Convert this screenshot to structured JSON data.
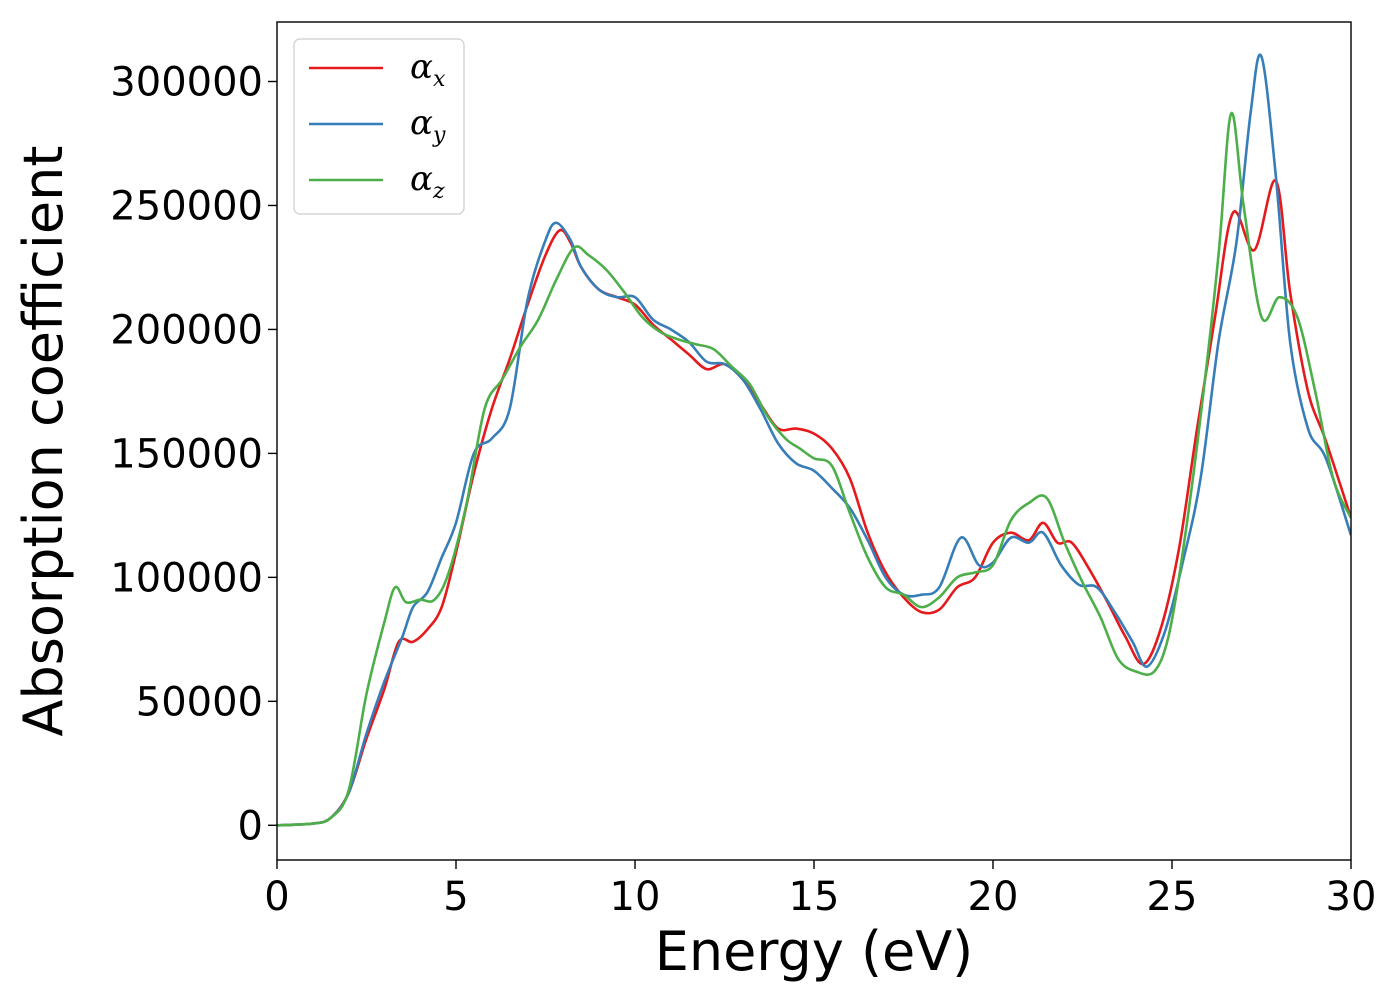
{
  "chart_data": {
    "type": "line",
    "title": "",
    "xlabel": "Energy (eV)",
    "ylabel": "Absorption coefficient",
    "xlim": [
      0,
      30
    ],
    "ylim": [
      -14000,
      324000
    ],
    "xticks": [
      0,
      5,
      10,
      15,
      20,
      25,
      30
    ],
    "xtick_labels": [
      "0",
      "5",
      "10",
      "15",
      "20",
      "25",
      "30"
    ],
    "yticks": [
      0,
      50000,
      100000,
      150000,
      200000,
      250000,
      300000
    ],
    "ytick_labels": [
      "0",
      "50000",
      "100000",
      "150000",
      "200000",
      "250000",
      "300000"
    ],
    "grid": false,
    "legend_position": "top-left",
    "series": [
      {
        "name": "αx",
        "symbol": "α",
        "subscript": "x",
        "color": "#e41a1c",
        "points": [
          [
            0,
            0
          ],
          [
            1,
            700
          ],
          [
            1.5,
            3000
          ],
          [
            2,
            13000
          ],
          [
            2.5,
            35000
          ],
          [
            3,
            55000
          ],
          [
            3.4,
            74000
          ],
          [
            3.8,
            74000
          ],
          [
            4.2,
            79000
          ],
          [
            4.6,
            88000
          ],
          [
            5,
            110000
          ],
          [
            5.5,
            142000
          ],
          [
            6,
            168000
          ],
          [
            6.5,
            188000
          ],
          [
            7,
            210000
          ],
          [
            7.5,
            230000
          ],
          [
            7.9,
            240000
          ],
          [
            8.2,
            235000
          ],
          [
            8.5,
            225000
          ],
          [
            9,
            216000
          ],
          [
            9.5,
            213000
          ],
          [
            10,
            210000
          ],
          [
            10.5,
            202000
          ],
          [
            11,
            196000
          ],
          [
            11.5,
            190000
          ],
          [
            12,
            184000
          ],
          [
            12.5,
            186000
          ],
          [
            13,
            180000
          ],
          [
            13.5,
            170000
          ],
          [
            14,
            160000
          ],
          [
            14.5,
            160000
          ],
          [
            15,
            158000
          ],
          [
            15.5,
            152000
          ],
          [
            16,
            140000
          ],
          [
            16.5,
            118000
          ],
          [
            17,
            102000
          ],
          [
            17.5,
            92000
          ],
          [
            18,
            86000
          ],
          [
            18.5,
            87000
          ],
          [
            19,
            96000
          ],
          [
            19.5,
            100000
          ],
          [
            20,
            114000
          ],
          [
            20.5,
            118000
          ],
          [
            21,
            115000
          ],
          [
            21.4,
            122000
          ],
          [
            21.8,
            114000
          ],
          [
            22.2,
            114000
          ],
          [
            22.7,
            103000
          ],
          [
            23.2,
            90000
          ],
          [
            23.7,
            76000
          ],
          [
            24.2,
            65000
          ],
          [
            24.7,
            80000
          ],
          [
            25.2,
            112000
          ],
          [
            25.7,
            160000
          ],
          [
            26.2,
            205000
          ],
          [
            26.7,
            247000
          ],
          [
            27.3,
            232000
          ],
          [
            27.9,
            260000
          ],
          [
            28.3,
            215000
          ],
          [
            28.8,
            175000
          ],
          [
            29.3,
            155000
          ],
          [
            30,
            124000
          ]
        ]
      },
      {
        "name": "αy",
        "symbol": "α",
        "subscript": "y",
        "color": "#377eb8",
        "points": [
          [
            0,
            0
          ],
          [
            1,
            700
          ],
          [
            1.5,
            3000
          ],
          [
            2,
            13000
          ],
          [
            2.5,
            37000
          ],
          [
            3,
            58000
          ],
          [
            3.5,
            76000
          ],
          [
            3.8,
            88000
          ],
          [
            4.2,
            94000
          ],
          [
            4.6,
            108000
          ],
          [
            5,
            122000
          ],
          [
            5.5,
            150000
          ],
          [
            6,
            156000
          ],
          [
            6.5,
            168000
          ],
          [
            7,
            212000
          ],
          [
            7.5,
            236000
          ],
          [
            7.8,
            243000
          ],
          [
            8.2,
            236000
          ],
          [
            8.5,
            225000
          ],
          [
            9,
            216000
          ],
          [
            9.5,
            213000
          ],
          [
            10,
            213000
          ],
          [
            10.5,
            204000
          ],
          [
            11,
            200000
          ],
          [
            11.5,
            195000
          ],
          [
            12,
            187000
          ],
          [
            12.5,
            186000
          ],
          [
            13,
            180000
          ],
          [
            13.5,
            168000
          ],
          [
            14,
            154000
          ],
          [
            14.5,
            146000
          ],
          [
            15,
            143000
          ],
          [
            15.5,
            136000
          ],
          [
            16,
            128000
          ],
          [
            16.5,
            115000
          ],
          [
            17,
            100000
          ],
          [
            17.5,
            93000
          ],
          [
            18,
            93000
          ],
          [
            18.5,
            96000
          ],
          [
            19.1,
            116000
          ],
          [
            19.6,
            105000
          ],
          [
            20,
            106000
          ],
          [
            20.5,
            116000
          ],
          [
            21,
            114000
          ],
          [
            21.4,
            118000
          ],
          [
            21.9,
            105000
          ],
          [
            22.4,
            97000
          ],
          [
            22.9,
            96000
          ],
          [
            23.4,
            86000
          ],
          [
            23.9,
            74000
          ],
          [
            24.3,
            64000
          ],
          [
            24.8,
            78000
          ],
          [
            25.3,
            106000
          ],
          [
            25.8,
            140000
          ],
          [
            26.3,
            195000
          ],
          [
            26.8,
            235000
          ],
          [
            27.2,
            288000
          ],
          [
            27.5,
            310000
          ],
          [
            27.9,
            262000
          ],
          [
            28.3,
            195000
          ],
          [
            28.8,
            160000
          ],
          [
            29.3,
            148000
          ],
          [
            30,
            117000
          ]
        ]
      },
      {
        "name": "αz",
        "symbol": "α",
        "subscript": "z",
        "color": "#4daf4a",
        "points": [
          [
            0,
            0
          ],
          [
            1,
            700
          ],
          [
            1.5,
            3000
          ],
          [
            2,
            14000
          ],
          [
            2.5,
            53000
          ],
          [
            3,
            82000
          ],
          [
            3.3,
            96000
          ],
          [
            3.6,
            90000
          ],
          [
            4,
            91000
          ],
          [
            4.4,
            91000
          ],
          [
            4.8,
            102000
          ],
          [
            5.3,
            130000
          ],
          [
            5.8,
            168000
          ],
          [
            6.3,
            180000
          ],
          [
            6.8,
            193000
          ],
          [
            7.3,
            204000
          ],
          [
            7.8,
            220000
          ],
          [
            8.3,
            233000
          ],
          [
            8.7,
            230000
          ],
          [
            9.2,
            224000
          ],
          [
            9.7,
            215000
          ],
          [
            10.2,
            205000
          ],
          [
            10.7,
            199000
          ],
          [
            11.2,
            196000
          ],
          [
            11.7,
            194000
          ],
          [
            12.2,
            192000
          ],
          [
            12.7,
            185000
          ],
          [
            13.2,
            178000
          ],
          [
            13.7,
            165000
          ],
          [
            14.2,
            156000
          ],
          [
            14.6,
            152000
          ],
          [
            15,
            148000
          ],
          [
            15.5,
            145000
          ],
          [
            16,
            126000
          ],
          [
            16.5,
            108000
          ],
          [
            17,
            96000
          ],
          [
            17.5,
            93000
          ],
          [
            18,
            88000
          ],
          [
            18.5,
            92000
          ],
          [
            19,
            100000
          ],
          [
            19.5,
            102000
          ],
          [
            20,
            105000
          ],
          [
            20.5,
            123000
          ],
          [
            21,
            130000
          ],
          [
            21.5,
            132000
          ],
          [
            22,
            114000
          ],
          [
            22.5,
            98000
          ],
          [
            23,
            84000
          ],
          [
            23.5,
            67000
          ],
          [
            24,
            62000
          ],
          [
            24.5,
            62000
          ],
          [
            24.9,
            76000
          ],
          [
            25.3,
            110000
          ],
          [
            25.8,
            165000
          ],
          [
            26.3,
            230000
          ],
          [
            26.65,
            287000
          ],
          [
            27,
            250000
          ],
          [
            27.5,
            205000
          ],
          [
            28,
            213000
          ],
          [
            28.5,
            205000
          ],
          [
            29,
            175000
          ],
          [
            29.5,
            140000
          ],
          [
            30,
            124000
          ]
        ]
      }
    ]
  }
}
